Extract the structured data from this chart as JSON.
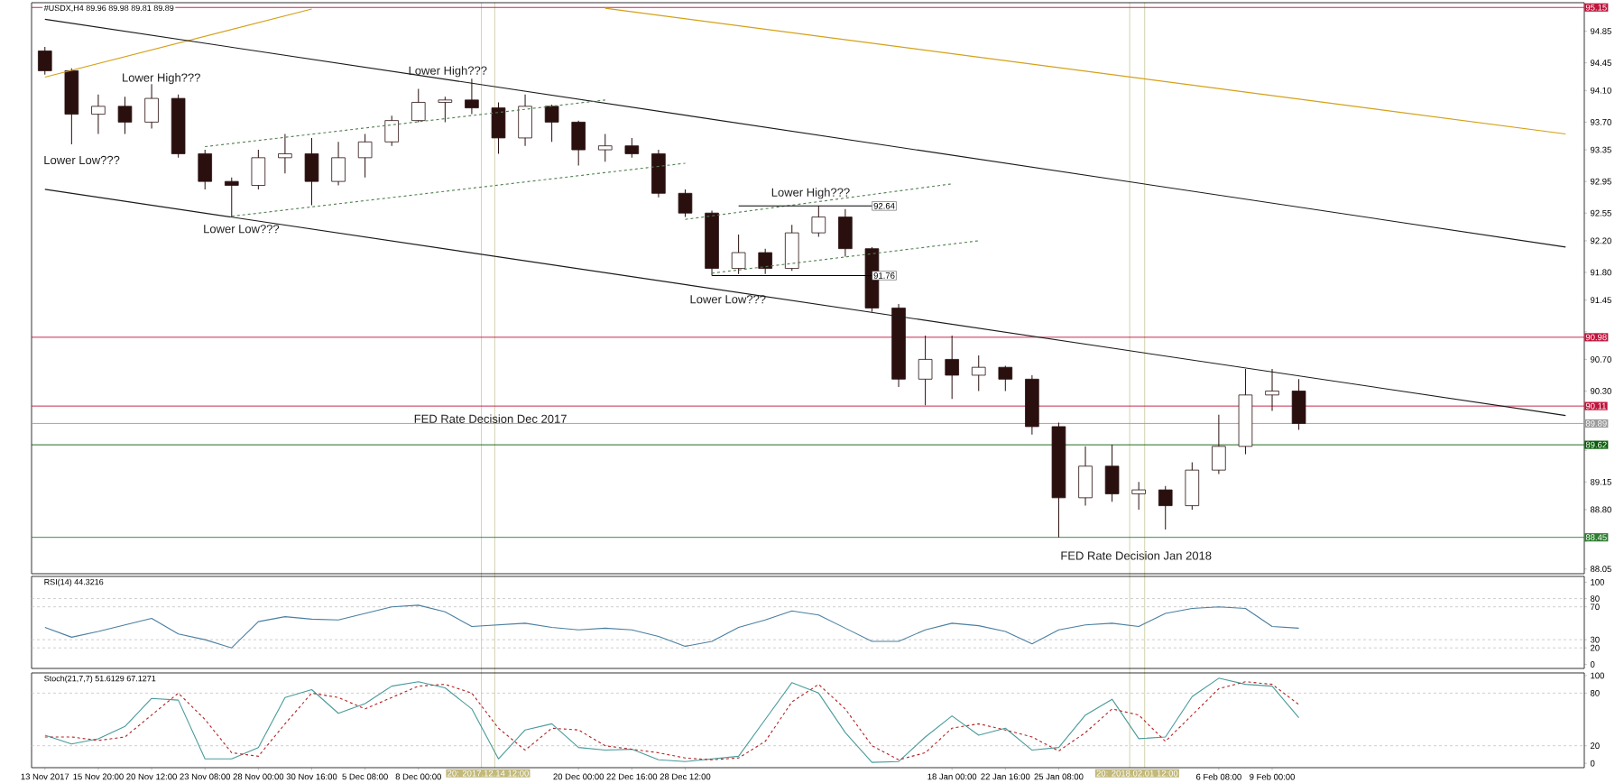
{
  "chart_data": [
    {
      "type": "candlestick",
      "title": "#USDX,H4 89.96 89.98 89.81 89.89",
      "color": "#2a0f0f",
      "categories": [
        null,
        null,
        null,
        null,
        null,
        null,
        null,
        null,
        null,
        null,
        null,
        null,
        null,
        null,
        null,
        null,
        null,
        null,
        null,
        null,
        null,
        null,
        null,
        null,
        null,
        null,
        null,
        null,
        null,
        null,
        null,
        null,
        null,
        null,
        null,
        null,
        null,
        null,
        null,
        null,
        null,
        null,
        null,
        null,
        null,
        null,
        null,
        null,
        null,
        null,
        null,
        null,
        null,
        null,
        null,
        null,
        null,
        null
      ],
      "ohlc": [
        [
          94.6,
          94.65,
          94.3,
          94.35
        ],
        [
          94.35,
          94.38,
          93.42,
          93.8
        ],
        [
          93.8,
          94.05,
          93.55,
          93.9
        ],
        [
          93.9,
          94.02,
          93.55,
          93.7
        ],
        [
          93.7,
          94.18,
          93.62,
          94.0
        ],
        [
          94.0,
          94.05,
          93.25,
          93.3
        ],
        [
          93.3,
          93.35,
          92.85,
          92.95
        ],
        [
          92.95,
          93.0,
          92.5,
          92.9
        ],
        [
          92.9,
          93.35,
          92.85,
          93.25
        ],
        [
          93.25,
          93.55,
          93.05,
          93.3
        ],
        [
          93.3,
          93.5,
          92.65,
          92.95
        ],
        [
          92.95,
          93.45,
          92.9,
          93.25
        ],
        [
          93.25,
          93.55,
          93.0,
          93.45
        ],
        [
          93.45,
          93.78,
          93.4,
          93.72
        ],
        [
          93.72,
          94.12,
          93.7,
          93.95
        ],
        [
          93.95,
          94.02,
          93.7,
          93.98
        ],
        [
          93.98,
          94.25,
          93.8,
          93.88
        ],
        [
          93.88,
          93.95,
          93.3,
          93.5
        ],
        [
          93.5,
          94.05,
          93.4,
          93.9
        ],
        [
          93.9,
          93.92,
          93.45,
          93.7
        ],
        [
          93.7,
          93.72,
          93.15,
          93.35
        ],
        [
          93.35,
          93.55,
          93.2,
          93.4
        ],
        [
          93.4,
          93.5,
          93.25,
          93.3
        ],
        [
          93.3,
          93.35,
          92.75,
          92.8
        ],
        [
          92.8,
          92.85,
          92.5,
          92.55
        ],
        [
          92.55,
          92.58,
          91.76,
          91.85
        ],
        [
          91.85,
          92.28,
          91.78,
          92.05
        ],
        [
          92.05,
          92.1,
          91.78,
          91.85
        ],
        [
          91.85,
          92.4,
          91.82,
          92.3
        ],
        [
          92.3,
          92.64,
          92.25,
          92.5
        ],
        [
          92.5,
          92.6,
          92.0,
          92.1
        ],
        [
          92.1,
          92.12,
          91.3,
          91.35
        ],
        [
          91.35,
          91.4,
          90.35,
          90.45
        ],
        [
          90.45,
          91.0,
          90.12,
          90.7
        ],
        [
          90.7,
          91.0,
          90.2,
          90.5
        ],
        [
          90.5,
          90.75,
          90.3,
          90.6
        ],
        [
          90.6,
          90.62,
          90.3,
          90.45
        ],
        [
          90.45,
          90.5,
          89.75,
          89.85
        ],
        [
          89.85,
          89.9,
          88.45,
          88.95
        ],
        [
          88.95,
          89.6,
          88.85,
          89.35
        ],
        [
          89.35,
          89.62,
          88.9,
          89.0
        ],
        [
          89.0,
          89.15,
          88.8,
          89.05
        ],
        [
          89.05,
          89.1,
          88.55,
          88.85
        ],
        [
          88.85,
          89.4,
          88.8,
          89.3
        ],
        [
          89.3,
          90.0,
          89.25,
          89.6
        ],
        [
          89.6,
          90.58,
          89.5,
          90.25
        ],
        [
          90.25,
          90.58,
          90.05,
          90.3
        ],
        [
          90.3,
          90.45,
          89.81,
          89.89
        ],
        null,
        null,
        null,
        null,
        null,
        null,
        null,
        null,
        null,
        null
      ],
      "series": [
        {
          "type": "line",
          "color": "#d4a017",
          "values": [
            94.27,
            null,
            null,
            null,
            null,
            null,
            null,
            null,
            null,
            null,
            95.13,
            null,
            null,
            null,
            null,
            null,
            null,
            null,
            null,
            null,
            null,
            null,
            null,
            null,
            null,
            null,
            null,
            null,
            null,
            null,
            null,
            null,
            null,
            null,
            null,
            null,
            null,
            null,
            null,
            null,
            null,
            null,
            null,
            null,
            null,
            null,
            null,
            null,
            null,
            null,
            null,
            null,
            null,
            null,
            null,
            null,
            null,
            null
          ]
        },
        {
          "type": "line",
          "color": "#d4a017",
          "values": [
            null,
            null,
            null,
            null,
            null,
            null,
            null,
            null,
            null,
            null,
            null,
            null,
            null,
            null,
            null,
            null,
            null,
            null,
            null,
            null,
            null,
            95.14,
            null,
            null,
            null,
            null,
            null,
            null,
            null,
            null,
            null,
            null,
            null,
            null,
            null,
            null,
            null,
            null,
            null,
            null,
            null,
            null,
            null,
            null,
            null,
            null,
            null,
            null,
            null,
            null,
            null,
            null,
            null,
            null,
            null,
            null,
            null,
            93.55
          ]
        },
        {
          "type": "line",
          "color": "#1a1a1a",
          "values": [
            95.0,
            null,
            null,
            null,
            null,
            null,
            null,
            null,
            null,
            null,
            null,
            null,
            null,
            null,
            null,
            null,
            null,
            null,
            null,
            null,
            null,
            null,
            null,
            null,
            null,
            null,
            null,
            null,
            null,
            null,
            null,
            null,
            null,
            null,
            null,
            null,
            null,
            null,
            null,
            null,
            null,
            null,
            null,
            null,
            null,
            null,
            null,
            null,
            null,
            null,
            null,
            null,
            null,
            null,
            null,
            null,
            null,
            92.12
          ]
        },
        {
          "type": "line",
          "color": "#1a1a1a",
          "values": [
            92.85,
            null,
            null,
            null,
            null,
            null,
            null,
            null,
            null,
            null,
            null,
            null,
            null,
            null,
            null,
            null,
            null,
            null,
            null,
            null,
            null,
            null,
            null,
            null,
            null,
            null,
            null,
            null,
            null,
            null,
            null,
            null,
            null,
            null,
            null,
            null,
            null,
            null,
            null,
            null,
            null,
            null,
            null,
            null,
            null,
            null,
            null,
            null,
            null,
            null,
            null,
            null,
            null,
            null,
            null,
            null,
            null,
            89.99
          ]
        },
        {
          "type": "line",
          "color": "#4f7f4f",
          "line_style": "dashed",
          "values": [
            null,
            null,
            null,
            null,
            null,
            null,
            93.39,
            null,
            null,
            null,
            null,
            null,
            null,
            null,
            null,
            null,
            null,
            null,
            null,
            null,
            null,
            93.98,
            null,
            null,
            null,
            null,
            null,
            null,
            null,
            null,
            null,
            null,
            null,
            null,
            null,
            null,
            null,
            null,
            null,
            null,
            null,
            null,
            null,
            null,
            null,
            null,
            null,
            null,
            null,
            null,
            null,
            null,
            null,
            null,
            null,
            null,
            null,
            null
          ]
        },
        {
          "type": "line",
          "color": "#4f7f4f",
          "line_style": "dashed",
          "values": [
            null,
            null,
            null,
            null,
            null,
            null,
            null,
            92.51,
            null,
            null,
            null,
            null,
            null,
            null,
            null,
            null,
            null,
            null,
            null,
            null,
            null,
            null,
            null,
            null,
            93.18,
            null,
            null,
            null,
            null,
            null,
            null,
            null,
            null,
            null,
            null,
            null,
            null,
            null,
            null,
            null,
            null,
            null,
            null,
            null,
            null,
            null,
            null,
            null,
            null,
            null,
            null,
            null,
            null,
            null,
            null,
            null,
            null,
            null
          ]
        },
        {
          "type": "line",
          "color": "#4f7f4f",
          "line_style": "dashed",
          "values": [
            null,
            null,
            null,
            null,
            null,
            null,
            null,
            null,
            null,
            null,
            null,
            null,
            null,
            null,
            null,
            null,
            null,
            null,
            null,
            null,
            null,
            null,
            null,
            null,
            92.47,
            null,
            null,
            null,
            null,
            null,
            null,
            null,
            null,
            null,
            92.92,
            null,
            null,
            null,
            null,
            null,
            null,
            null,
            null,
            null,
            null,
            null,
            null,
            null,
            null,
            null,
            null,
            null,
            null,
            null,
            null,
            null,
            null,
            null
          ]
        },
        {
          "type": "line",
          "color": "#4f7f4f",
          "line_style": "dashed",
          "values": [
            null,
            null,
            null,
            null,
            null,
            null,
            null,
            null,
            null,
            null,
            null,
            null,
            null,
            null,
            null,
            null,
            null,
            null,
            null,
            null,
            null,
            null,
            null,
            null,
            null,
            91.79,
            null,
            null,
            null,
            null,
            null,
            null,
            null,
            null,
            null,
            92.2,
            null,
            null,
            null,
            null,
            null,
            null,
            null,
            null,
            null,
            null,
            null,
            null,
            null,
            null,
            null,
            null,
            null,
            null,
            null,
            null,
            null,
            null
          ]
        },
        {
          "type": "line",
          "name": "92.64",
          "color": "#000000",
          "values": [
            null,
            null,
            null,
            null,
            null,
            null,
            null,
            null,
            null,
            null,
            null,
            null,
            null,
            null,
            null,
            null,
            null,
            null,
            null,
            null,
            null,
            null,
            null,
            null,
            null,
            null,
            92.64,
            null,
            null,
            null,
            null,
            92.64,
            null,
            null,
            null,
            null,
            null,
            null,
            null,
            null,
            null,
            null,
            null,
            null,
            null,
            null,
            null,
            null,
            null,
            null,
            null,
            null,
            null,
            null,
            null,
            null,
            null,
            null
          ]
        },
        {
          "type": "line",
          "name": "91.76",
          "color": "#000000",
          "values": [
            null,
            null,
            null,
            null,
            null,
            null,
            null,
            null,
            null,
            null,
            null,
            null,
            null,
            null,
            null,
            null,
            null,
            null,
            null,
            null,
            null,
            null,
            null,
            null,
            null,
            91.76,
            null,
            null,
            null,
            null,
            null,
            91.76,
            null,
            null,
            null,
            null,
            null,
            null,
            null,
            null,
            null,
            null,
            null,
            null,
            null,
            null,
            null,
            null,
            null,
            null,
            null,
            null,
            null,
            null,
            null,
            null,
            null,
            null
          ]
        }
      ],
      "ylim": [
        87.99,
        95.21
      ],
      "yticks": [
        94.85,
        94.45,
        {
          "value": 94.1,
          "label": "94.10"
        },
        {
          "value": 93.7,
          "label": "93.70"
        },
        93.35,
        92.95,
        92.55,
        {
          "value": 92.2,
          "label": "92.20"
        },
        {
          "value": 91.8,
          "label": "91.80"
        },
        91.45,
        {
          "value": 91.05,
          "label": null
        },
        {
          "value": 90.7,
          "label": "90.70"
        },
        {
          "value": 90.3,
          "label": "90.30"
        },
        {
          "value": 89.55,
          "label": null
        },
        89.15,
        {
          "value": 88.8,
          "label": "88.80"
        },
        {
          "value": 88.4,
          "label": null
        },
        88.05
      ],
      "tick_labels": "y",
      "ref_lines": [
        {
          "axis": "y",
          "value": 95.15,
          "label": "95.15",
          "color": "#c0143c"
        },
        {
          "axis": "y",
          "value": 90.98,
          "label": "90.98",
          "color": "#c0143c"
        },
        {
          "axis": "y",
          "value": 90.11,
          "label": "90.11",
          "color": "#c0143c"
        },
        {
          "axis": "y",
          "value": 89.89,
          "label": "89.89",
          "color": "#9a9a9a"
        },
        {
          "axis": "y",
          "value": 89.62,
          "label": "89.62",
          "color": "#0a5c0a"
        },
        {
          "axis": "y",
          "value": 88.45,
          "label": "88.45",
          "color": "#2e7d32"
        }
      ],
      "annotations": [
        "Lower  High???",
        "Lower  Low???",
        "Lower  Low???",
        "Lower  High???",
        "Lower  High???",
        "Lower  Low???",
        "FED Rate Decision Dec 2017",
        "FED Rate Decision Jan 2018"
      ]
    },
    {
      "type": "line",
      "title": "RSI(14) 44.3216",
      "categories": [
        null,
        null,
        null,
        null,
        null,
        null,
        null,
        null,
        null,
        null,
        null,
        null,
        null,
        null,
        null,
        null,
        null,
        null,
        null,
        null,
        null,
        null,
        null,
        null,
        null,
        null,
        null,
        null,
        null,
        null,
        null,
        null,
        null,
        null,
        null,
        null,
        null,
        null,
        null,
        null,
        null,
        null,
        null,
        null,
        null,
        null,
        null,
        null,
        null,
        null,
        null,
        null,
        null,
        null,
        null,
        null,
        null,
        null
      ],
      "series": [
        {
          "color": "#4a7fa0",
          "values": [
            45,
            33,
            40,
            48,
            56,
            37,
            30,
            20,
            52,
            58,
            55,
            54,
            62,
            70,
            72,
            64,
            46,
            48,
            50,
            45,
            42,
            44,
            42,
            34,
            22,
            28,
            45,
            54,
            65,
            60,
            44,
            28,
            28,
            42,
            50,
            47,
            40,
            25,
            42,
            48,
            50,
            46,
            62,
            68,
            70,
            68,
            46,
            44,
            null,
            null,
            null,
            null,
            null,
            null,
            null,
            null,
            null,
            null
          ]
        }
      ],
      "ylim": [
        -5,
        107
      ],
      "yticks": [
        100,
        80,
        70,
        30,
        20,
        0
      ],
      "tick_labels": "y",
      "ref_lines": [
        {
          "axis": "y",
          "value": 80,
          "color": "#c8c8c8",
          "line_style": "dashed"
        },
        {
          "axis": "y",
          "value": 70,
          "color": "#c8c8c8",
          "line_style": "dashed"
        },
        {
          "axis": "y",
          "value": 30,
          "color": "#c8c8c8",
          "line_style": "dashed"
        },
        {
          "axis": "y",
          "value": 20,
          "color": "#c8c8c8",
          "line_style": "dashed"
        }
      ]
    },
    {
      "type": "line",
      "title": "Stoch(21,7,7) 51.6129 67.1271",
      "categories": [
        "13 Nov 2017",
        null,
        "15 Nov 20:00",
        null,
        "20 Nov 12:00",
        null,
        "23 Nov 08:00",
        null,
        "28 Nov 00:00",
        null,
        "30 Nov 16:00",
        null,
        "5 Dec 08:00",
        null,
        "8 Dec 00:00",
        null,
        null,
        null,
        null,
        null,
        "20 Dec 00:00",
        null,
        "22 Dec 16:00",
        null,
        "28 Dec 12:00",
        null,
        null,
        null,
        null,
        null,
        null,
        null,
        null,
        null,
        "18 Jan 00:00",
        null,
        "22 Jan 16:00",
        null,
        "25 Jan 08:00",
        null,
        null,
        null,
        null,
        null,
        "6 Feb 08:00",
        null,
        "9 Feb 00:00",
        null,
        null,
        null,
        null,
        null,
        null,
        null,
        null,
        null,
        null,
        null
      ],
      "series": [
        {
          "color": "#4a9a9a",
          "values": [
            32,
            22,
            28,
            42,
            74,
            72,
            5,
            5,
            18,
            75,
            84,
            57,
            68,
            88,
            93,
            86,
            62,
            5,
            38,
            45,
            18,
            15,
            16,
            4,
            2,
            5,
            8,
            50,
            92,
            80,
            35,
            1,
            2,
            30,
            54,
            32,
            40,
            15,
            18,
            55,
            73,
            28,
            30,
            76,
            97,
            90,
            88,
            52,
            null,
            null,
            null,
            null,
            null,
            null,
            null,
            null,
            null,
            null
          ]
        },
        {
          "color": "#b22222",
          "line_style": "dashed",
          "values": [
            30,
            30,
            26,
            30,
            55,
            80,
            50,
            12,
            8,
            45,
            80,
            75,
            62,
            75,
            88,
            90,
            80,
            40,
            15,
            40,
            38,
            20,
            16,
            12,
            6,
            4,
            6,
            25,
            70,
            90,
            62,
            20,
            4,
            12,
            40,
            45,
            38,
            30,
            14,
            35,
            62,
            55,
            25,
            55,
            85,
            93,
            90,
            67,
            null,
            null,
            null,
            null,
            null,
            null,
            null,
            null,
            null,
            null
          ]
        }
      ],
      "ylim": [
        -5,
        103
      ],
      "yticks": [
        100,
        80,
        20,
        0
      ],
      "ref_lines": [
        {
          "axis": "y",
          "value": 80,
          "color": "#c8c8c8",
          "line_style": "dashed"
        },
        {
          "axis": "y",
          "value": 20,
          "color": "#c8c8c8",
          "line_style": "dashed"
        }
      ],
      "annotations": [
        "20: 2017.12.14 12:00",
        "20: 2018.02.01 12:00"
      ]
    }
  ]
}
